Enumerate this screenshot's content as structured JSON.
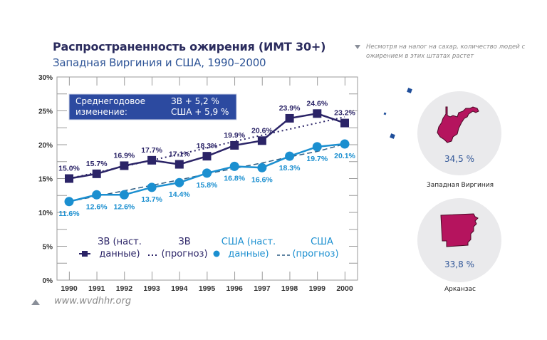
{
  "header": {
    "title": "Распространенность ожирения (ИМТ 30+)",
    "subtitle": "Западная Виргиния и США, 1990–2000"
  },
  "note": {
    "icon": "triangle-down-icon",
    "text": "Несмотря на налог на сахар, количество людей с ожирением в этих штатах растет"
  },
  "source": {
    "icon": "triangle-up-icon",
    "text": "www.wvdhhr.org"
  },
  "states": [
    {
      "name": "Западная Виргиния",
      "value": "34,5 %",
      "color": "#b5145e"
    },
    {
      "name": "Арканзас",
      "value": "33,8 %",
      "color": "#b5145e"
    }
  ],
  "chart_data": {
    "type": "line",
    "title": "Распространенность ожирения (ИМТ 30+)",
    "subtitle": "Западная Виргиния и США, 1990–2000",
    "xlabel": "",
    "ylabel": "",
    "x": [
      "1990",
      "1991",
      "1992",
      "1993",
      "1994",
      "1995",
      "1996",
      "1997",
      "1998",
      "1999",
      "2000"
    ],
    "ylim": [
      0,
      30
    ],
    "yticks": [
      "0%",
      "5%",
      "10%",
      "15%",
      "20%",
      "25%",
      "30%"
    ],
    "grid": false,
    "info_box": {
      "label_line1": "Среднегодовое",
      "label_line2": "изменение:",
      "value_line1": "ЗВ + 5,2 %",
      "value_line2": "США + 5,9 %"
    },
    "series": [
      {
        "name": "ЗВ (наст. данные)",
        "legend_line1": "ЗВ (наст.",
        "legend_line2": "данные)",
        "color": "#2b2467",
        "marker": "square",
        "values": [
          15.0,
          15.7,
          16.9,
          17.7,
          17.1,
          18.3,
          19.9,
          20.6,
          23.9,
          24.6,
          23.2
        ],
        "labels": [
          "15.0%",
          "15.7%",
          "16.9%",
          "17.7%",
          "17.1%",
          "18.3%",
          "19.9%",
          "20.6%",
          "23.9%",
          "24.6%",
          "23.2%"
        ]
      },
      {
        "name": "ЗВ (прогноз)",
        "legend_line1": "ЗВ",
        "legend_line2": "(прогноз)",
        "color": "#2b2467",
        "style": "dotted",
        "values": [
          15.0,
          15.9,
          16.8,
          17.7,
          18.6,
          19.5,
          20.5,
          21.4,
          22.3,
          23.2,
          24.1
        ]
      },
      {
        "name": "США (наст. данные)",
        "legend_line1": "США (наст.",
        "legend_line2": "данные)",
        "color": "#1b8fd0",
        "marker": "circle",
        "values": [
          11.6,
          12.6,
          12.6,
          13.7,
          14.4,
          15.8,
          16.8,
          16.6,
          18.3,
          19.7,
          20.1
        ],
        "labels": [
          "11.6%",
          "12.6%",
          "12.6%",
          "13.7%",
          "14.4%",
          "15.8%",
          "16.8%",
          "16.6%",
          "18.3%",
          "19.7%",
          "20.1%"
        ]
      },
      {
        "name": "США (прогноз)",
        "legend_line1": "США",
        "legend_line2": "(прогноз)",
        "color": "#2e5f86",
        "style": "dashed",
        "values": [
          11.6,
          12.4,
          13.2,
          14.0,
          14.8,
          15.7,
          16.5,
          17.3,
          18.2,
          19.0,
          20.1
        ]
      }
    ]
  }
}
